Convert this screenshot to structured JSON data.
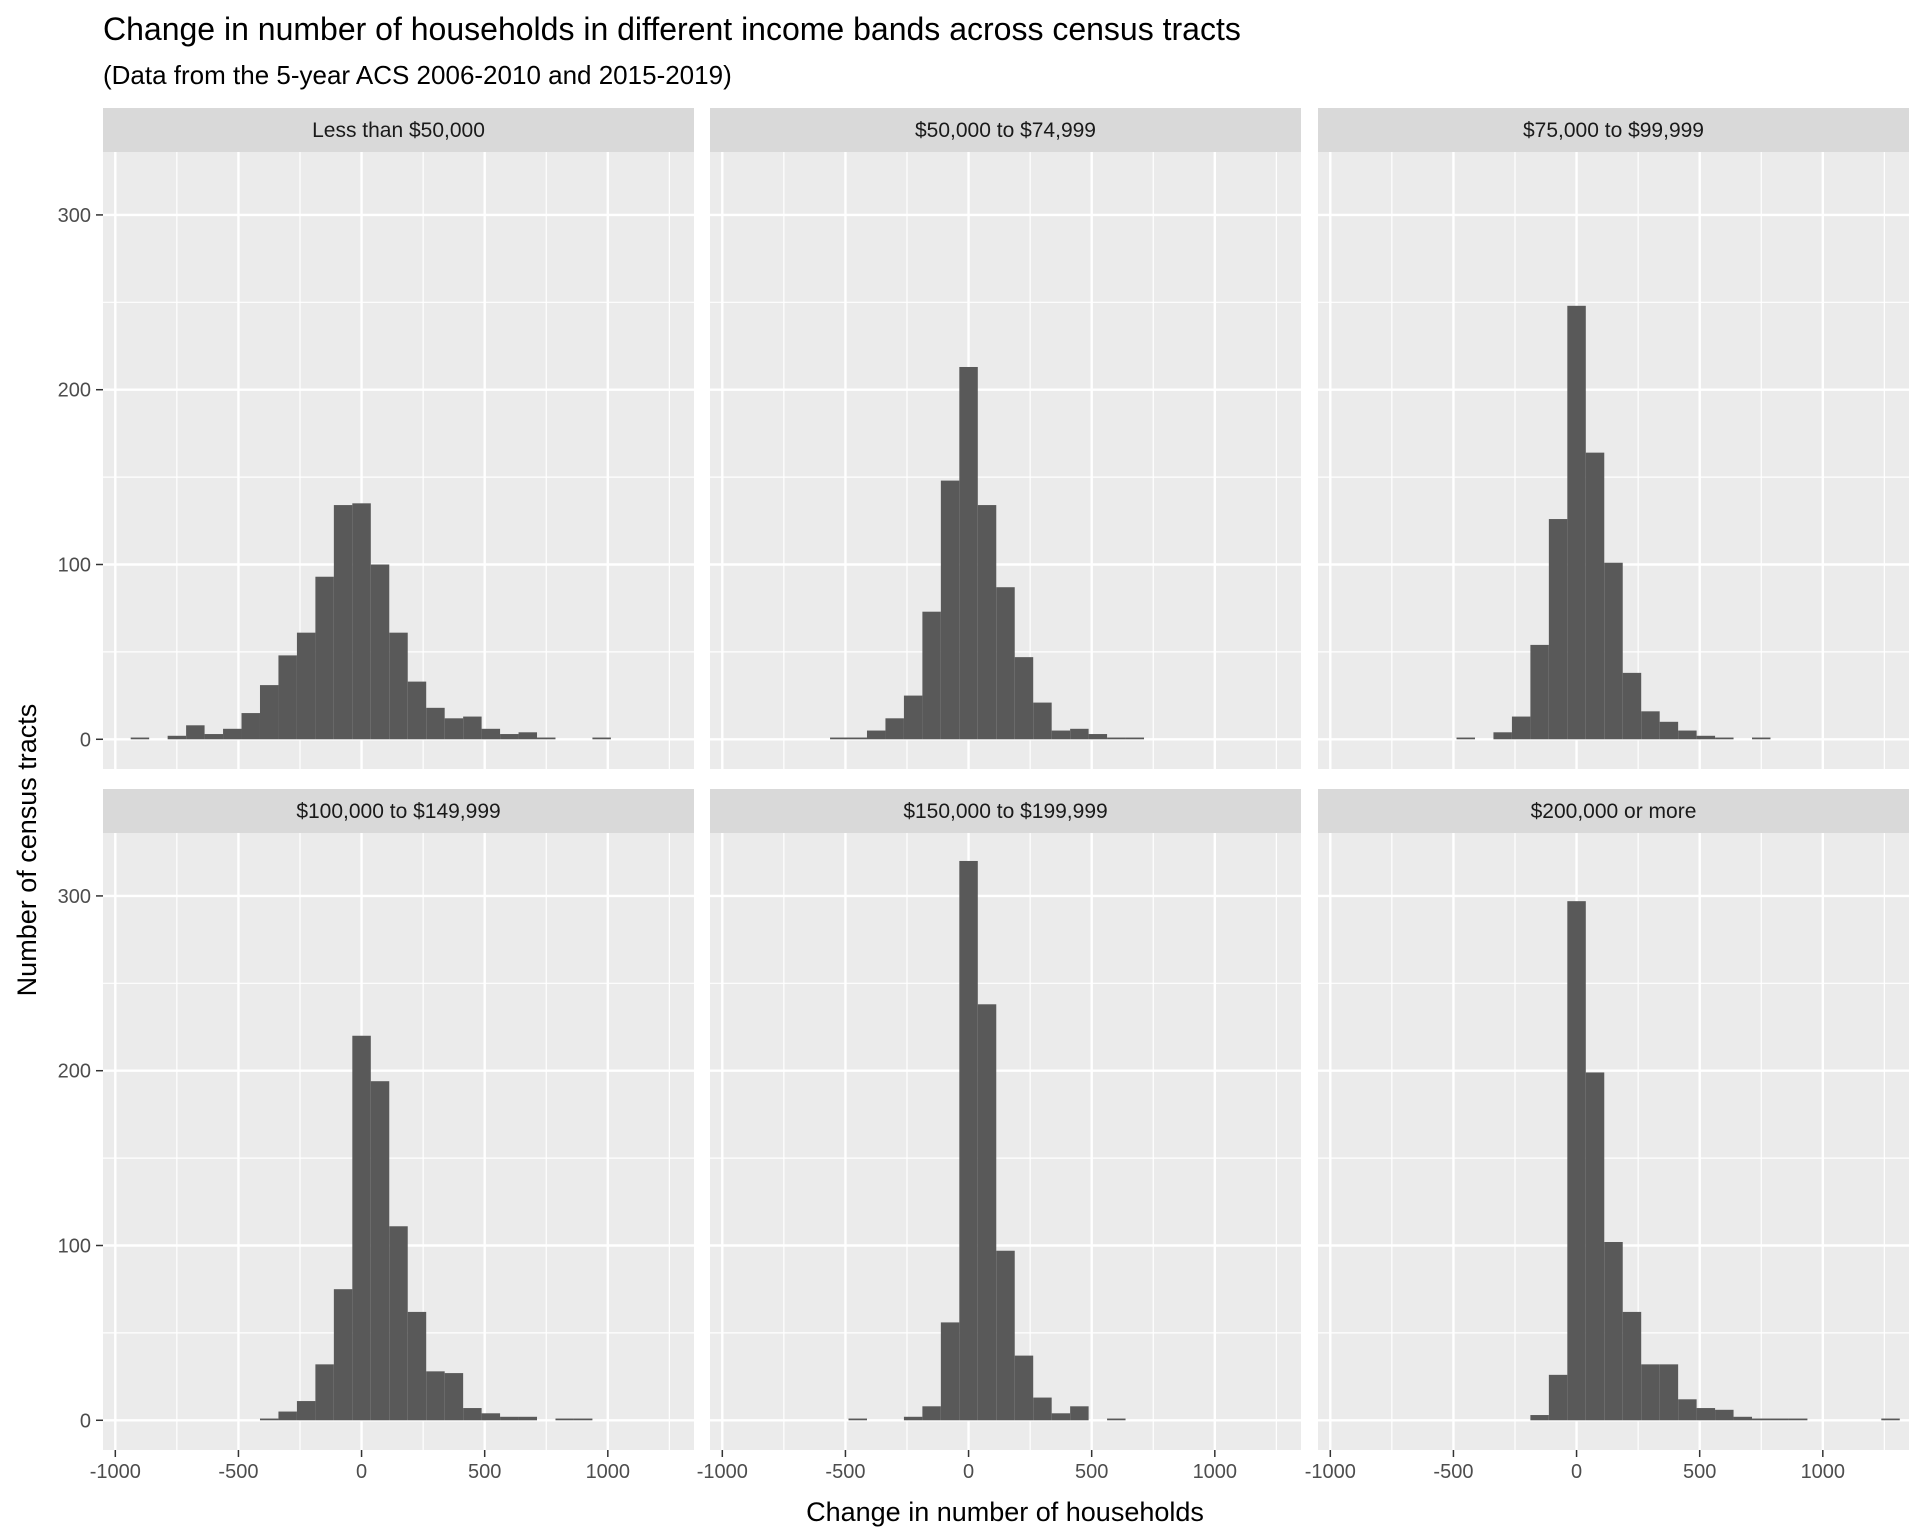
{
  "chart_data": {
    "type": "histogram",
    "title": "Change in number of households in different income bands across census tracts",
    "subtitle": "(Data from the 5-year ACS 2006-2010 and 2015-2019)",
    "xlabel": "Change in number of households",
    "ylabel": "Number of census tracts",
    "xlim": [
      -1050,
      1350
    ],
    "ylim": [
      -17,
      336
    ],
    "x_ticks": [
      -1000,
      -500,
      0,
      500,
      1000
    ],
    "y_ticks": [
      0,
      100,
      200,
      300
    ],
    "grid": true,
    "bin_width": 75,
    "bar_color": "#595959",
    "panel_background": "#ebebeb",
    "strip_background": "#d9d9d9",
    "panels": [
      {
        "label": "Less than $50,000",
        "bins": [
          {
            "x": -900,
            "count": 1
          },
          {
            "x": -750,
            "count": 2
          },
          {
            "x": -675,
            "count": 8
          },
          {
            "x": -600,
            "count": 3
          },
          {
            "x": -525,
            "count": 6
          },
          {
            "x": -450,
            "count": 15
          },
          {
            "x": -375,
            "count": 31
          },
          {
            "x": -300,
            "count": 48
          },
          {
            "x": -225,
            "count": 61
          },
          {
            "x": -150,
            "count": 93
          },
          {
            "x": -75,
            "count": 134
          },
          {
            "x": 0,
            "count": 135
          },
          {
            "x": 75,
            "count": 100
          },
          {
            "x": 150,
            "count": 61
          },
          {
            "x": 225,
            "count": 33
          },
          {
            "x": 300,
            "count": 18
          },
          {
            "x": 375,
            "count": 12
          },
          {
            "x": 450,
            "count": 13
          },
          {
            "x": 525,
            "count": 6
          },
          {
            "x": 600,
            "count": 3
          },
          {
            "x": 675,
            "count": 4
          },
          {
            "x": 750,
            "count": 1
          },
          {
            "x": 975,
            "count": 1
          }
        ]
      },
      {
        "label": "$50,000 to $74,999",
        "bins": [
          {
            "x": -525,
            "count": 1
          },
          {
            "x": -450,
            "count": 1
          },
          {
            "x": -375,
            "count": 5
          },
          {
            "x": -300,
            "count": 12
          },
          {
            "x": -225,
            "count": 25
          },
          {
            "x": -150,
            "count": 73
          },
          {
            "x": -75,
            "count": 148
          },
          {
            "x": 0,
            "count": 213
          },
          {
            "x": 75,
            "count": 134
          },
          {
            "x": 150,
            "count": 87
          },
          {
            "x": 225,
            "count": 47
          },
          {
            "x": 300,
            "count": 21
          },
          {
            "x": 375,
            "count": 5
          },
          {
            "x": 450,
            "count": 6
          },
          {
            "x": 525,
            "count": 3
          },
          {
            "x": 600,
            "count": 1
          },
          {
            "x": 675,
            "count": 1
          }
        ]
      },
      {
        "label": "$75,000 to $99,999",
        "bins": [
          {
            "x": -450,
            "count": 1
          },
          {
            "x": -300,
            "count": 4
          },
          {
            "x": -225,
            "count": 13
          },
          {
            "x": -150,
            "count": 54
          },
          {
            "x": -75,
            "count": 126
          },
          {
            "x": 0,
            "count": 248
          },
          {
            "x": 75,
            "count": 164
          },
          {
            "x": 150,
            "count": 101
          },
          {
            "x": 225,
            "count": 38
          },
          {
            "x": 300,
            "count": 16
          },
          {
            "x": 375,
            "count": 10
          },
          {
            "x": 450,
            "count": 5
          },
          {
            "x": 525,
            "count": 2
          },
          {
            "x": 600,
            "count": 1
          },
          {
            "x": 750,
            "count": 1
          }
        ]
      },
      {
        "label": "$100,000 to $149,999",
        "bins": [
          {
            "x": -375,
            "count": 1
          },
          {
            "x": -300,
            "count": 5
          },
          {
            "x": -225,
            "count": 11
          },
          {
            "x": -150,
            "count": 32
          },
          {
            "x": -75,
            "count": 75
          },
          {
            "x": 0,
            "count": 220
          },
          {
            "x": 75,
            "count": 194
          },
          {
            "x": 150,
            "count": 111
          },
          {
            "x": 225,
            "count": 62
          },
          {
            "x": 300,
            "count": 28
          },
          {
            "x": 375,
            "count": 27
          },
          {
            "x": 450,
            "count": 7
          },
          {
            "x": 525,
            "count": 4
          },
          {
            "x": 600,
            "count": 2
          },
          {
            "x": 675,
            "count": 2
          },
          {
            "x": 825,
            "count": 1
          },
          {
            "x": 900,
            "count": 1
          }
        ]
      },
      {
        "label": "$150,000 to $199,999",
        "bins": [
          {
            "x": -450,
            "count": 1
          },
          {
            "x": -225,
            "count": 2
          },
          {
            "x": -150,
            "count": 8
          },
          {
            "x": -75,
            "count": 56
          },
          {
            "x": 0,
            "count": 320
          },
          {
            "x": 75,
            "count": 238
          },
          {
            "x": 150,
            "count": 97
          },
          {
            "x": 225,
            "count": 37
          },
          {
            "x": 300,
            "count": 13
          },
          {
            "x": 375,
            "count": 4
          },
          {
            "x": 450,
            "count": 8
          },
          {
            "x": 600,
            "count": 1
          }
        ]
      },
      {
        "label": "$200,000 or more",
        "bins": [
          {
            "x": -150,
            "count": 3
          },
          {
            "x": -75,
            "count": 26
          },
          {
            "x": 0,
            "count": 297
          },
          {
            "x": 75,
            "count": 199
          },
          {
            "x": 150,
            "count": 102
          },
          {
            "x": 225,
            "count": 62
          },
          {
            "x": 300,
            "count": 32
          },
          {
            "x": 375,
            "count": 32
          },
          {
            "x": 450,
            "count": 12
          },
          {
            "x": 525,
            "count": 7
          },
          {
            "x": 600,
            "count": 6
          },
          {
            "x": 675,
            "count": 2
          },
          {
            "x": 750,
            "count": 1
          },
          {
            "x": 825,
            "count": 1
          },
          {
            "x": 900,
            "count": 1
          },
          {
            "x": 1275,
            "count": 1
          }
        ]
      }
    ]
  }
}
